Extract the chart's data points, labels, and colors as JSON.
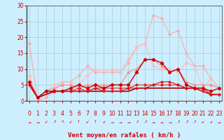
{
  "background_color": "#cceeff",
  "grid_color": "#aacccc",
  "x_min": 0,
  "x_max": 23,
  "y_min": 0,
  "y_max": 30,
  "xlabel": "Vent moyen/en rafales ( km/h )",
  "xlabel_color": "#cc0000",
  "xlabel_fontsize": 6.5,
  "tick_color": "#cc0000",
  "tick_fontsize": 5.5,
  "ytick_values": [
    0,
    5,
    10,
    15,
    20,
    25,
    30
  ],
  "xtick_values": [
    0,
    1,
    2,
    3,
    4,
    5,
    6,
    7,
    8,
    9,
    10,
    11,
    12,
    13,
    14,
    15,
    16,
    17,
    18,
    19,
    20,
    21,
    22,
    23
  ],
  "series": [
    {
      "x": [
        0,
        1,
        2,
        3,
        4,
        5,
        6,
        7,
        8,
        9,
        10,
        11,
        12,
        13,
        14,
        15,
        16,
        17,
        18,
        19,
        20,
        21,
        22,
        23
      ],
      "y": [
        18,
        0,
        1,
        3,
        6,
        6,
        8,
        11,
        9,
        9,
        9,
        9,
        12,
        17,
        18,
        27,
        26,
        21,
        22,
        15,
        11,
        11,
        7,
        4
      ],
      "color": "#ffaaaa",
      "linewidth": 0.8,
      "marker": "D",
      "markersize": 1.8,
      "zorder": 2
    },
    {
      "x": [
        0,
        1,
        2,
        3,
        4,
        5,
        6,
        7,
        8,
        9,
        10,
        11,
        12,
        13,
        14,
        15,
        16,
        17,
        18,
        19,
        20,
        21,
        22,
        23
      ],
      "y": [
        8,
        1,
        3,
        5,
        6,
        6,
        5,
        8,
        10,
        9,
        10,
        9,
        13,
        17,
        18,
        11,
        10,
        10,
        9,
        12,
        11,
        4,
        7,
        4
      ],
      "color": "#ffbbbb",
      "linewidth": 0.8,
      "marker": "D",
      "markersize": 1.8,
      "zorder": 2
    },
    {
      "x": [
        0,
        1,
        2,
        3,
        4,
        5,
        6,
        7,
        8,
        9,
        10,
        11,
        12,
        13,
        14,
        15,
        16,
        17,
        18,
        19,
        20,
        21,
        22,
        23
      ],
      "y": [
        6,
        1,
        3,
        4,
        5,
        5,
        4,
        5,
        5,
        5,
        5,
        5,
        9,
        10,
        13,
        13,
        11,
        9,
        10,
        6,
        5,
        5,
        5,
        4
      ],
      "color": "#ff8888",
      "linewidth": 0.8,
      "marker": "^",
      "markersize": 2.2,
      "zorder": 3
    },
    {
      "x": [
        0,
        1,
        2,
        3,
        4,
        5,
        6,
        7,
        8,
        9,
        10,
        11,
        12,
        13,
        14,
        15,
        16,
        17,
        18,
        19,
        20,
        21,
        22,
        23
      ],
      "y": [
        6,
        1,
        3,
        3,
        3,
        4,
        5,
        4,
        5,
        4,
        5,
        5,
        5,
        9,
        13,
        13,
        12,
        9,
        10,
        5,
        4,
        4,
        3,
        4
      ],
      "color": "#cc0000",
      "linewidth": 1.0,
      "marker": "D",
      "markersize": 2.2,
      "zorder": 4
    },
    {
      "x": [
        0,
        1,
        2,
        3,
        4,
        5,
        6,
        7,
        8,
        9,
        10,
        11,
        12,
        13,
        14,
        15,
        16,
        17,
        18,
        19,
        20,
        21,
        22,
        23
      ],
      "y": [
        5,
        1,
        3,
        3,
        3,
        3,
        4,
        3,
        4,
        4,
        4,
        4,
        4,
        5,
        5,
        5,
        5,
        5,
        5,
        4,
        4,
        3,
        2,
        2
      ],
      "color": "#ee2222",
      "linewidth": 0.8,
      "marker": "D",
      "markersize": 1.8,
      "zorder": 3
    },
    {
      "x": [
        0,
        1,
        2,
        3,
        4,
        5,
        6,
        7,
        8,
        9,
        10,
        11,
        12,
        13,
        14,
        15,
        16,
        17,
        18,
        19,
        20,
        21,
        22,
        23
      ],
      "y": [
        5,
        1,
        3,
        3,
        3,
        3,
        3,
        3,
        4,
        3,
        3,
        3,
        4,
        4,
        4,
        5,
        6,
        6,
        5,
        4,
        4,
        4,
        2,
        2
      ],
      "color": "#dd1111",
      "linewidth": 0.8,
      "marker": "D",
      "markersize": 1.5,
      "zorder": 3
    },
    {
      "x": [
        0,
        1,
        2,
        3,
        4,
        5,
        6,
        7,
        8,
        9,
        10,
        11,
        12,
        13,
        14,
        15,
        16,
        17,
        18,
        19,
        20,
        21,
        22,
        23
      ],
      "y": [
        5,
        1,
        2,
        3,
        3,
        3,
        3,
        3,
        3,
        3,
        3,
        3,
        3,
        4,
        4,
        4,
        4,
        4,
        4,
        4,
        4,
        3,
        2,
        2
      ],
      "color": "#990000",
      "linewidth": 1.2,
      "marker": null,
      "markersize": 0,
      "zorder": 2
    }
  ],
  "wind_arrows": [
    "→",
    "→",
    "↙",
    "↗",
    "↖",
    "↙",
    "↑",
    "↙",
    "↑",
    "↙",
    "→",
    "→",
    "→",
    "↗",
    "↗",
    "→",
    "→",
    "→",
    "↗",
    "↗",
    "↗",
    "↙",
    "↙",
    "→"
  ],
  "arrow_color": "#cc0000",
  "arrow_fontsize": 4.0
}
